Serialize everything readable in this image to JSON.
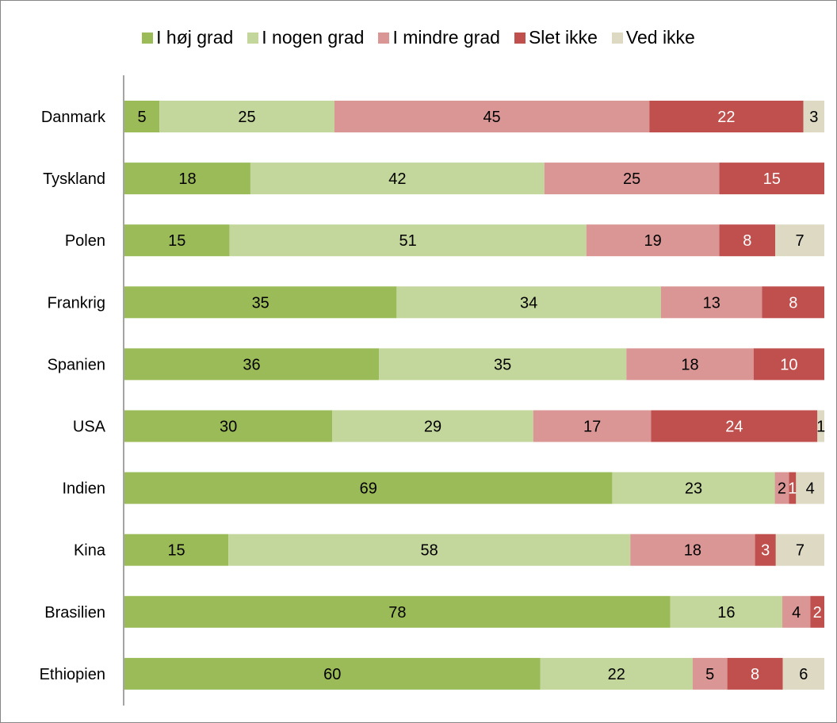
{
  "chart_data": {
    "type": "bar",
    "orientation": "horizontal",
    "stacked": true,
    "categories": [
      "Danmark",
      "Tyskland",
      "Polen",
      "Frankrig",
      "Spanien",
      "USA",
      "Indien",
      "Kina",
      "Brasilien",
      "Ethiopien"
    ],
    "series": [
      {
        "name": "I høj grad",
        "color": "#9bbb59",
        "label_color": "#000000",
        "values": [
          5,
          18,
          15,
          35,
          36,
          30,
          69,
          15,
          78,
          60
        ]
      },
      {
        "name": "I nogen grad",
        "color": "#c3d69b",
        "label_color": "#000000",
        "values": [
          25,
          42,
          51,
          34,
          35,
          29,
          23,
          58,
          16,
          22
        ]
      },
      {
        "name": "I mindre grad",
        "color": "#d99694",
        "label_color": "#000000",
        "values": [
          45,
          25,
          19,
          13,
          18,
          17,
          2,
          18,
          4,
          5
        ]
      },
      {
        "name": "Slet ikke",
        "color": "#c0504d",
        "label_color": "#ffffff",
        "values": [
          22,
          15,
          8,
          8,
          10,
          24,
          1,
          3,
          2,
          8
        ]
      },
      {
        "name": "Ved ikke",
        "color": "#ddd9c3",
        "label_color": "#000000",
        "values": [
          3,
          null,
          7,
          null,
          null,
          1,
          4,
          7,
          null,
          6
        ]
      }
    ],
    "xlim": [
      0,
      100
    ],
    "legend_position": "top",
    "grid": false,
    "title": "",
    "xlabel": "",
    "ylabel": ""
  }
}
